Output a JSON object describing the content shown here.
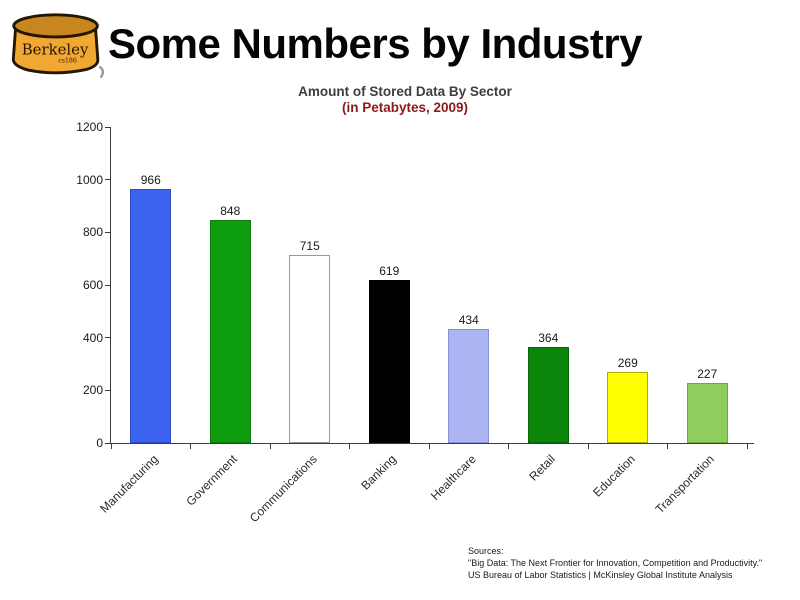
{
  "logo": {
    "brand": "Berkeley",
    "course": "cs186"
  },
  "header": {
    "title": "Some Numbers by Industry"
  },
  "chart_data": {
    "type": "bar",
    "title": "Amount of Stored Data By Sector",
    "subtitle": "(in Petabytes, 2009)",
    "subtitle_color": "#8B1A1A",
    "categories": [
      "Manufacturing",
      "Government",
      "Communications",
      "Banking",
      "Healthcare",
      "Retail",
      "Education",
      "Transportation"
    ],
    "values": [
      966,
      848,
      715,
      619,
      434,
      364,
      269,
      227
    ],
    "bar_colors": [
      "#3B63EE",
      "#0D9D0D",
      "#FFFFFF",
      "#000000",
      "#ADB4F2",
      "#0B860B",
      "#FFFF00",
      "#8FCE5C"
    ],
    "bar_border_colors": [
      "#2B49C8",
      "#0A7A0A",
      "#999999",
      "#000000",
      "#868FD8",
      "#076607",
      "#ABAB00",
      "#6FA53F"
    ],
    "xlabel": "",
    "ylabel": "",
    "ylim": [
      0,
      1200
    ],
    "yticks": [
      0,
      200,
      400,
      600,
      800,
      1000,
      1200
    ],
    "grid": false,
    "legend": "none",
    "value_labels": true,
    "axis_color": "#3c3c3c"
  },
  "footer": {
    "sources_label": "Sources:",
    "source_line_1": "\"Big Data: The Next Frontier for Innovation, Competition and Productivity.\"",
    "source_line_2": "US Bureau of Labor Statistics | McKinsley Global Institute Analysis"
  }
}
